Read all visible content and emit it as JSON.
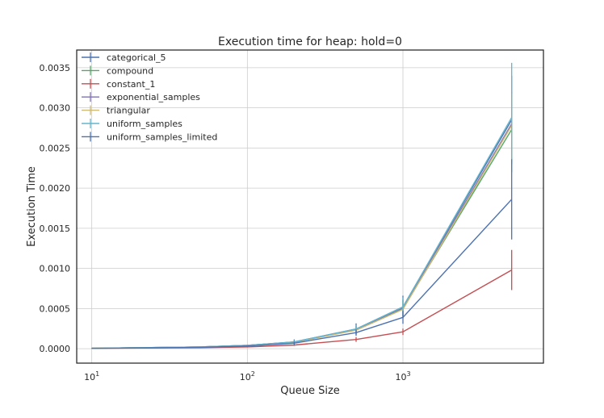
{
  "chart_data": {
    "type": "line",
    "title": "Execution time for heap: hold=0",
    "xlabel": "Queue Size",
    "ylabel": "Execution Time",
    "x_scale": "log",
    "xlim": [
      8,
      8000
    ],
    "ylim": [
      -0.00018,
      0.00372
    ],
    "x_ticks": [
      {
        "value": 10,
        "base": "10",
        "exp": "1"
      },
      {
        "value": 100,
        "base": "10",
        "exp": "2"
      },
      {
        "value": 1000,
        "base": "10",
        "exp": "3"
      }
    ],
    "y_ticks": [
      0,
      0.0005,
      0.001,
      0.0015,
      0.002,
      0.0025,
      0.003,
      0.0035
    ],
    "y_tick_labels": [
      "0.0000",
      "0.0005",
      "0.0010",
      "0.0015",
      "0.0020",
      "0.0025",
      "0.0030",
      "0.0035"
    ],
    "grid": true,
    "legend_position": "top-left",
    "x": [
      10,
      50,
      100,
      200,
      500,
      1000,
      5000
    ],
    "series": [
      {
        "name": "categorical_5",
        "color": "#4c72b0",
        "values": [
          5e-06,
          2.2e-05,
          4.2e-05,
          8.5e-05,
          0.000245,
          0.00052,
          0.00285
        ],
        "errors": [
          2e-06,
          4e-06,
          6e-06,
          3e-05,
          7e-05,
          0.00014,
          0.00055
        ]
      },
      {
        "name": "compound",
        "color": "#55a868",
        "values": [
          5e-06,
          2.1e-05,
          4e-05,
          8e-05,
          0.000235,
          0.0005,
          0.00273
        ],
        "errors": [
          2e-06,
          4e-06,
          6e-06,
          2e-05,
          5e-05,
          0.0001,
          0.0004
        ]
      },
      {
        "name": "constant_1",
        "color": "#c44e52",
        "values": [
          4e-06,
          1.2e-05,
          2.2e-05,
          4.5e-05,
          0.000115,
          0.00021,
          0.00098
        ],
        "errors": [
          1e-06,
          2e-06,
          4e-06,
          1e-05,
          3e-05,
          4e-05,
          0.00025
        ]
      },
      {
        "name": "exponential_samples",
        "color": "#8172b2",
        "values": [
          5e-06,
          2.2e-05,
          4.1e-05,
          8.2e-05,
          0.00024,
          0.00051,
          0.0028
        ],
        "errors": [
          2e-06,
          4e-06,
          6e-06,
          2e-05,
          5e-05,
          0.0001,
          0.0004
        ]
      },
      {
        "name": "triangular",
        "color": "#ccb974",
        "values": [
          5e-06,
          2.1e-05,
          4e-05,
          7.8e-05,
          0.00023,
          0.00049,
          0.00278
        ],
        "errors": [
          2e-06,
          4e-06,
          6e-06,
          2e-05,
          5e-05,
          0.0001,
          0.0004
        ]
      },
      {
        "name": "uniform_samples",
        "color": "#64b5cd",
        "values": [
          5e-06,
          2.2e-05,
          4.2e-05,
          8.3e-05,
          0.000245,
          0.00052,
          0.00288
        ],
        "errors": [
          2e-06,
          4e-06,
          6e-06,
          2e-05,
          5e-05,
          0.00012,
          0.00068
        ]
      },
      {
        "name": "uniform_samples_limited",
        "color": "#4c72b0",
        "values": [
          4e-06,
          1.7e-05,
          3.3e-05,
          6.8e-05,
          0.0002,
          0.00039,
          0.00186
        ],
        "errors": [
          2e-06,
          4e-06,
          6e-06,
          2e-05,
          4e-05,
          8e-05,
          0.0005
        ]
      }
    ]
  }
}
